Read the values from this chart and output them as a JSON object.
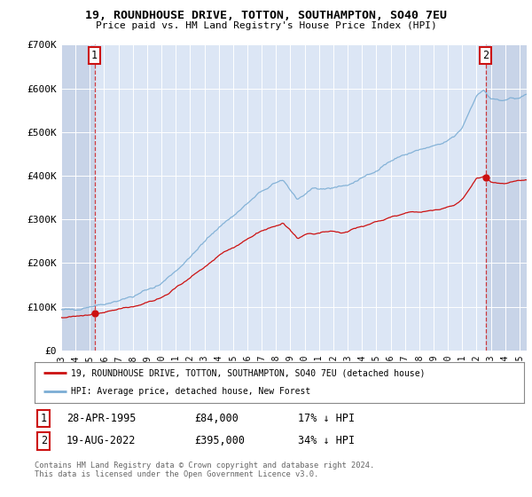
{
  "title1": "19, ROUNDHOUSE DRIVE, TOTTON, SOUTHAMPTON, SO40 7EU",
  "title2": "Price paid vs. HM Land Registry's House Price Index (HPI)",
  "ylim": [
    0,
    700000
  ],
  "yticks": [
    0,
    100000,
    200000,
    300000,
    400000,
    500000,
    600000,
    700000
  ],
  "ytick_labels": [
    "£0",
    "£100K",
    "£200K",
    "£300K",
    "£400K",
    "£500K",
    "£600K",
    "£700K"
  ],
  "background_color": "#ffffff",
  "plot_bg_color": "#dce6f5",
  "hatch_bg_color": "#c8d4e8",
  "grid_color": "#ffffff",
  "hpi_line_color": "#7badd4",
  "price_line_color": "#cc1111",
  "sale1_date": 1995.33,
  "sale1_price": 84000,
  "sale2_date": 2022.63,
  "sale2_price": 395000,
  "legend_label1": "19, ROUNDHOUSE DRIVE, TOTTON, SOUTHAMPTON, SO40 7EU (detached house)",
  "legend_label2": "HPI: Average price, detached house, New Forest",
  "annotation1_label": "1",
  "annotation2_label": "2",
  "table_row1": [
    "1",
    "28-APR-1995",
    "£84,000",
    "17% ↓ HPI"
  ],
  "table_row2": [
    "2",
    "19-AUG-2022",
    "£395,000",
    "34% ↓ HPI"
  ],
  "footer": "Contains HM Land Registry data © Crown copyright and database right 2024.\nThis data is licensed under the Open Government Licence v3.0.",
  "xmin": 1993.0,
  "xmax": 2025.5
}
